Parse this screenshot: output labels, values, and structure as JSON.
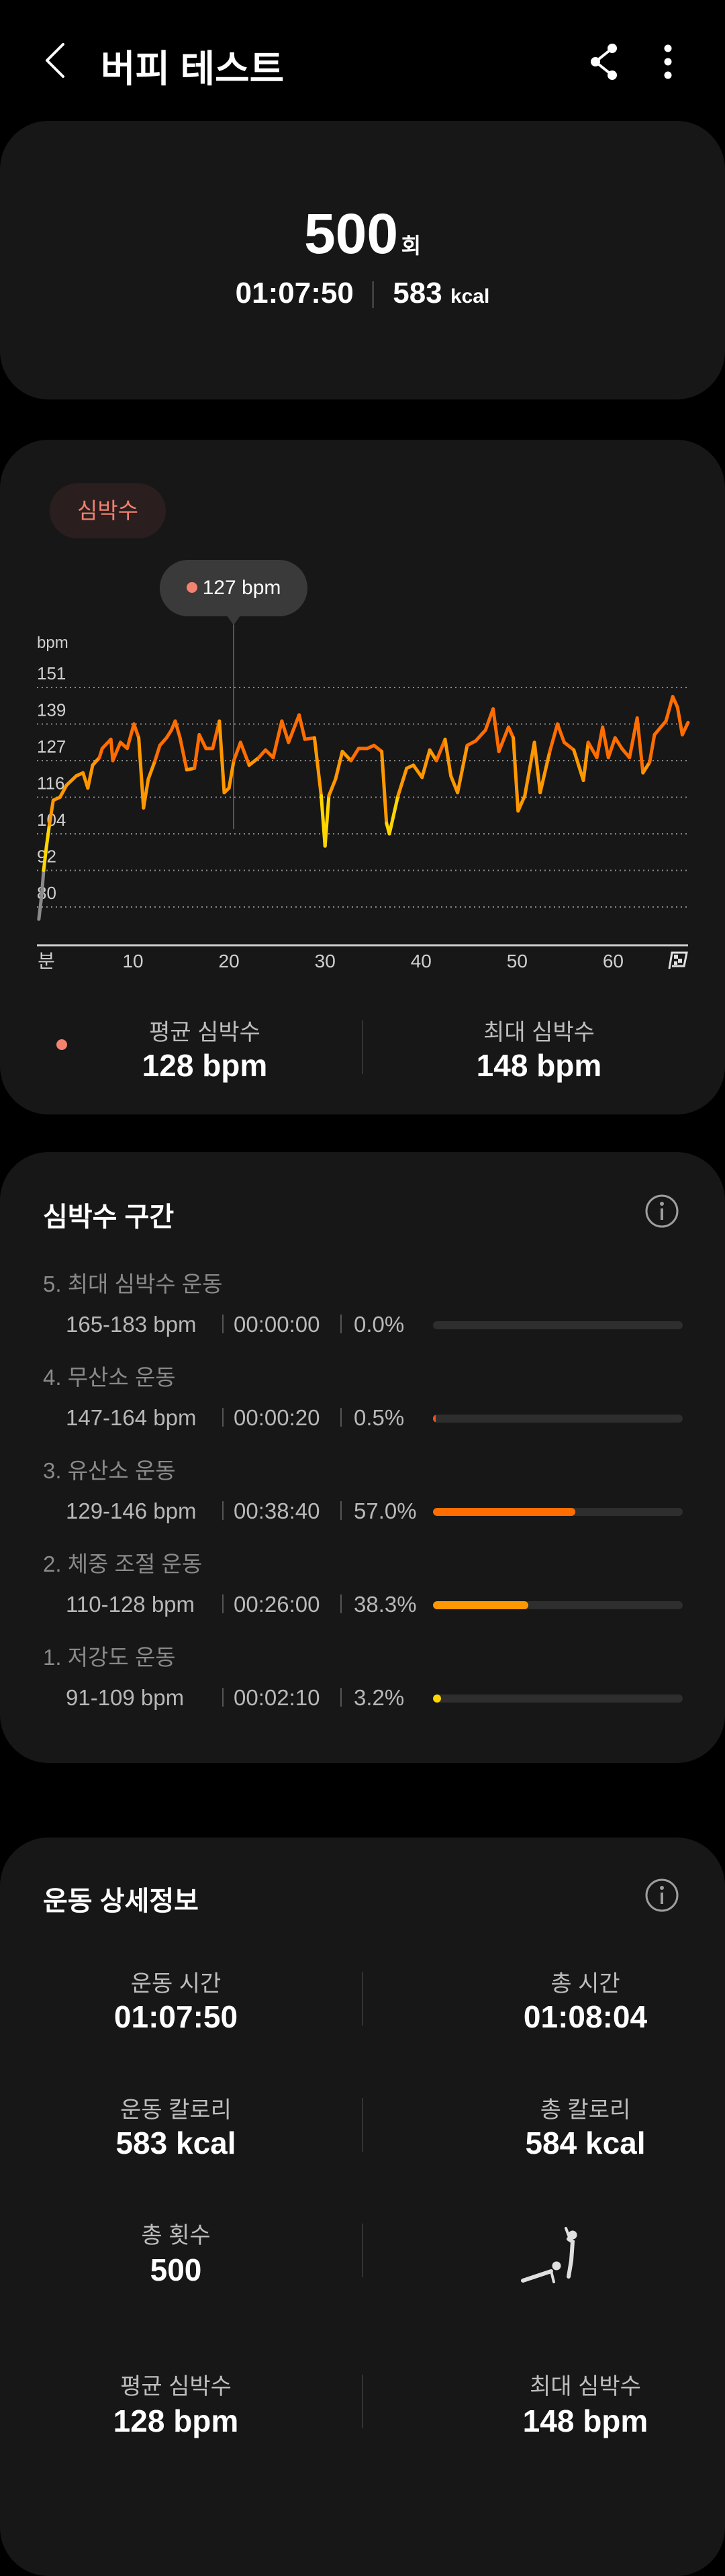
{
  "header": {
    "title": "버피 테스트",
    "back_icon": "chevron-left-icon",
    "share_icon": "share-icon",
    "more_icon": "more-vertical-icon"
  },
  "summary": {
    "count": "500",
    "count_unit": "회",
    "duration": "01:07:50",
    "calories": "583",
    "calories_unit": "kcal"
  },
  "heart_rate": {
    "chip_label": "심박수",
    "tooltip": "127 bpm",
    "avg_label": "평균 심박수",
    "avg_value": "128 bpm",
    "max_label": "최대 심박수",
    "max_value": "148 bpm"
  },
  "chart_data": {
    "type": "line",
    "ylabel": "bpm",
    "y_ticks": [
      "151",
      "139",
      "127",
      "116",
      "104",
      "92",
      "80"
    ],
    "x_ticks": [
      "분",
      "10",
      "20",
      "30",
      "40",
      "50",
      "60"
    ],
    "x_unit_label": "분",
    "xlim": [
      0,
      67.8
    ],
    "ylim": [
      68,
      157
    ],
    "grid": true,
    "zone_colors": {
      "below": "#8a8a8a",
      "z1": "#ffd600",
      "z2": "#ff9800",
      "z3": "#ff6d00",
      "z4": "#f4511e"
    },
    "x": [
      0.2,
      0.5,
      0.7,
      1.0,
      1.3,
      1.7,
      2.4,
      3.1,
      4.1,
      4.8,
      5.3,
      5.8,
      6.5,
      6.8,
      7.7,
      7.9,
      8.7,
      9.4,
      10.1,
      10.6,
      11.1,
      11.6,
      12.3,
      12.8,
      13.5,
      14.0,
      14.4,
      14.9,
      15.6,
      16.4,
      16.9,
      17.6,
      18.3,
      19.0,
      19.5,
      20.0,
      20.5,
      21.2,
      22.1,
      23.1,
      23.8,
      24.6,
      25.5,
      26.2,
      27.3,
      27.9,
      28.9,
      29.6,
      30.0,
      30.4,
      31.1,
      31.8,
      32.7,
      33.5,
      34.4,
      35.1,
      35.9,
      36.4,
      36.7,
      37.6,
      38.5,
      39.2,
      40.1,
      40.9,
      41.6,
      42.5,
      43.1,
      43.8,
      44.8,
      45.7,
      46.7,
      47.5,
      48.1,
      49.1,
      49.6,
      50.1,
      50.8,
      51.8,
      52.4,
      53.4,
      54.2,
      54.9,
      55.9,
      56.9,
      57.4,
      58.3,
      58.9,
      59.5,
      60.2,
      60.9,
      61.7,
      62.5,
      63.1,
      63.8,
      64.3,
      65.5,
      66.2,
      66.7,
      67.2,
      67.8
    ],
    "y": [
      75,
      83,
      91,
      99,
      106,
      114,
      115,
      119,
      122,
      123,
      118,
      125.5,
      128,
      131,
      134,
      127,
      133,
      131,
      139,
      134.5,
      111.5,
      121,
      127,
      132,
      134.5,
      137,
      140,
      134.5,
      124,
      124.5,
      135.5,
      131,
      131,
      140,
      116.5,
      118,
      127,
      133,
      125.5,
      128,
      130.5,
      128,
      140,
      133,
      142,
      134,
      134.5,
      115.5,
      99,
      115.5,
      121,
      130,
      127,
      131,
      131,
      132,
      130,
      106.5,
      103,
      115.5,
      124.5,
      125.5,
      121.5,
      130.5,
      127,
      134,
      122,
      116.5,
      132,
      133.5,
      137,
      144,
      130,
      138,
      134.5,
      110.5,
      115.5,
      133,
      116.5,
      130,
      139,
      133,
      130.5,
      120.5,
      133,
      128,
      138,
      128,
      134.5,
      131,
      128,
      141,
      123,
      126.5,
      135.5,
      140,
      148,
      144.5,
      135.5,
      139.5
    ]
  },
  "zones": {
    "title": "심박수 구간",
    "info_icon": "info-icon",
    "items": [
      {
        "name": "5. 최대 심박수 운동",
        "range": "165-183 bpm",
        "time": "00:00:00",
        "percent": "0.0%",
        "fraction": 0.0,
        "color": "#f4511e"
      },
      {
        "name": "4. 무산소 운동",
        "range": "147-164 bpm",
        "time": "00:00:20",
        "percent": "0.5%",
        "fraction": 0.005,
        "color": "#f4511e"
      },
      {
        "name": "3. 유산소 운동",
        "range": "129-146 bpm",
        "time": "00:38:40",
        "percent": "57.0%",
        "fraction": 0.57,
        "color": "#ff6d00"
      },
      {
        "name": "2. 체중 조절 운동",
        "range": "110-128 bpm",
        "time": "00:26:00",
        "percent": "38.3%",
        "fraction": 0.383,
        "color": "#ff9800"
      },
      {
        "name": "1. 저강도 운동",
        "range": "91-109 bpm",
        "time": "00:02:10",
        "percent": "3.2%",
        "fraction": 0.032,
        "color": "#ffd600"
      }
    ]
  },
  "details": {
    "title": "운동 상세정보",
    "info_icon": "info-icon",
    "exercise_time_label": "운동 시간",
    "exercise_time": "01:07:50",
    "total_time_label": "총 시간",
    "total_time": "01:08:04",
    "exercise_cal_label": "운동 칼로리",
    "exercise_cal": "583 kcal",
    "total_cal_label": "총 칼로리",
    "total_cal": "584 kcal",
    "total_reps_label": "총 횟수",
    "total_reps": "500",
    "exercise_icon": "burpee-icon",
    "avg_hr_label": "평균 심박수",
    "avg_hr": "128 bpm",
    "max_hr_label": "최대 심박수",
    "max_hr": "148 bpm"
  }
}
